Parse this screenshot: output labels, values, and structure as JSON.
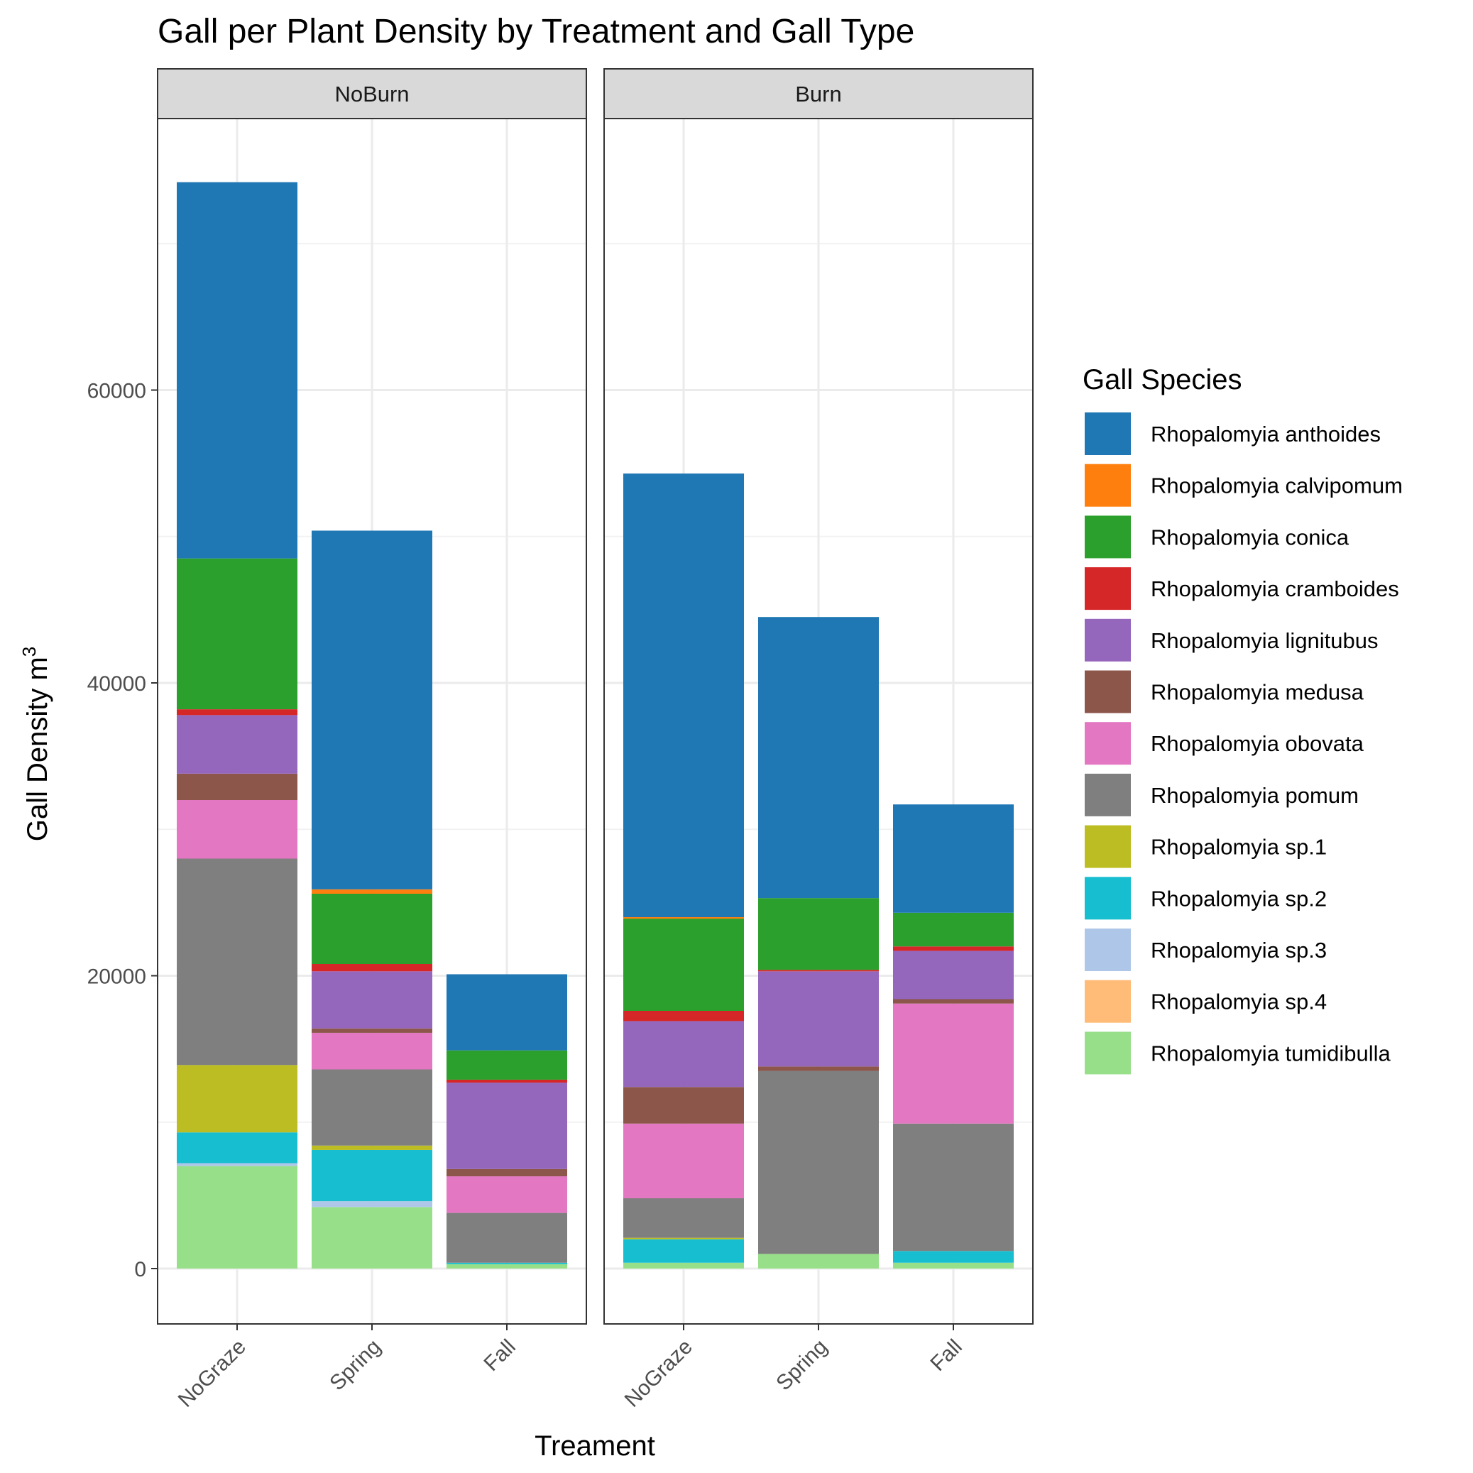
{
  "chart_data": {
    "type": "bar",
    "stacked": true,
    "title": "Gall per Plant Density by Treatment and Gall Type",
    "xlabel": "Treament",
    "ylabel": "Gall Density m",
    "ylabel_superscript": "3",
    "ylim": [
      -3600,
      76000
    ],
    "yticks": [
      0,
      20000,
      40000,
      60000
    ],
    "grid": true,
    "legend_title": "Gall Species",
    "legend_position": "right",
    "categories": [
      "NoGraze",
      "Spring",
      "Fall"
    ],
    "species": [
      {
        "name": "Rhopalomyia anthoides",
        "color": "#1f77b4"
      },
      {
        "name": "Rhopalomyia calvipomum",
        "color": "#ff7f0e"
      },
      {
        "name": "Rhopalomyia conica",
        "color": "#2ca02c"
      },
      {
        "name": "Rhopalomyia cramboides",
        "color": "#d62728"
      },
      {
        "name": "Rhopalomyia lignitubus",
        "color": "#9467bd"
      },
      {
        "name": "Rhopalomyia medusa",
        "color": "#8c564b"
      },
      {
        "name": "Rhopalomyia obovata",
        "color": "#e377c2"
      },
      {
        "name": "Rhopalomyia pomum",
        "color": "#7f7f7f"
      },
      {
        "name": "Rhopalomyia sp.1",
        "color": "#bcbd22"
      },
      {
        "name": "Rhopalomyia sp.2",
        "color": "#17becf"
      },
      {
        "name": "Rhopalomyia sp.3",
        "color": "#aec7e8"
      },
      {
        "name": "Rhopalomyia sp.4",
        "color": "#ffbb78"
      },
      {
        "name": "Rhopalomyia tumidibulla",
        "color": "#98df8a"
      }
    ],
    "panels": [
      {
        "label": "NoBurn",
        "bars": [
          {
            "category": "NoGraze",
            "values": [
              25700,
              0,
              10300,
              400,
              4000,
              1800,
              4000,
              14100,
              4600,
              2100,
              200,
              0,
              7000
            ]
          },
          {
            "category": "Spring",
            "values": [
              24500,
              300,
              4800,
              500,
              3900,
              300,
              2500,
              5200,
              300,
              3500,
              400,
              0,
              4200
            ]
          },
          {
            "category": "Fall",
            "values": [
              5200,
              0,
              2000,
              200,
              5900,
              500,
              2500,
              3400,
              0,
              100,
              0,
              0,
              300
            ]
          }
        ]
      },
      {
        "label": "Burn",
        "bars": [
          {
            "category": "NoGraze",
            "values": [
              30300,
              100,
              6300,
              700,
              4500,
              2500,
              5100,
              2700,
              100,
              1600,
              0,
              0,
              400
            ]
          },
          {
            "category": "Spring",
            "values": [
              19200,
              0,
              4900,
              100,
              6500,
              300,
              0,
              12500,
              0,
              0,
              0,
              0,
              1000
            ]
          },
          {
            "category": "Fall",
            "values": [
              7400,
              0,
              2300,
              300,
              3300,
              300,
              8200,
              8700,
              0,
              800,
              0,
              0,
              400
            ]
          }
        ]
      }
    ]
  }
}
